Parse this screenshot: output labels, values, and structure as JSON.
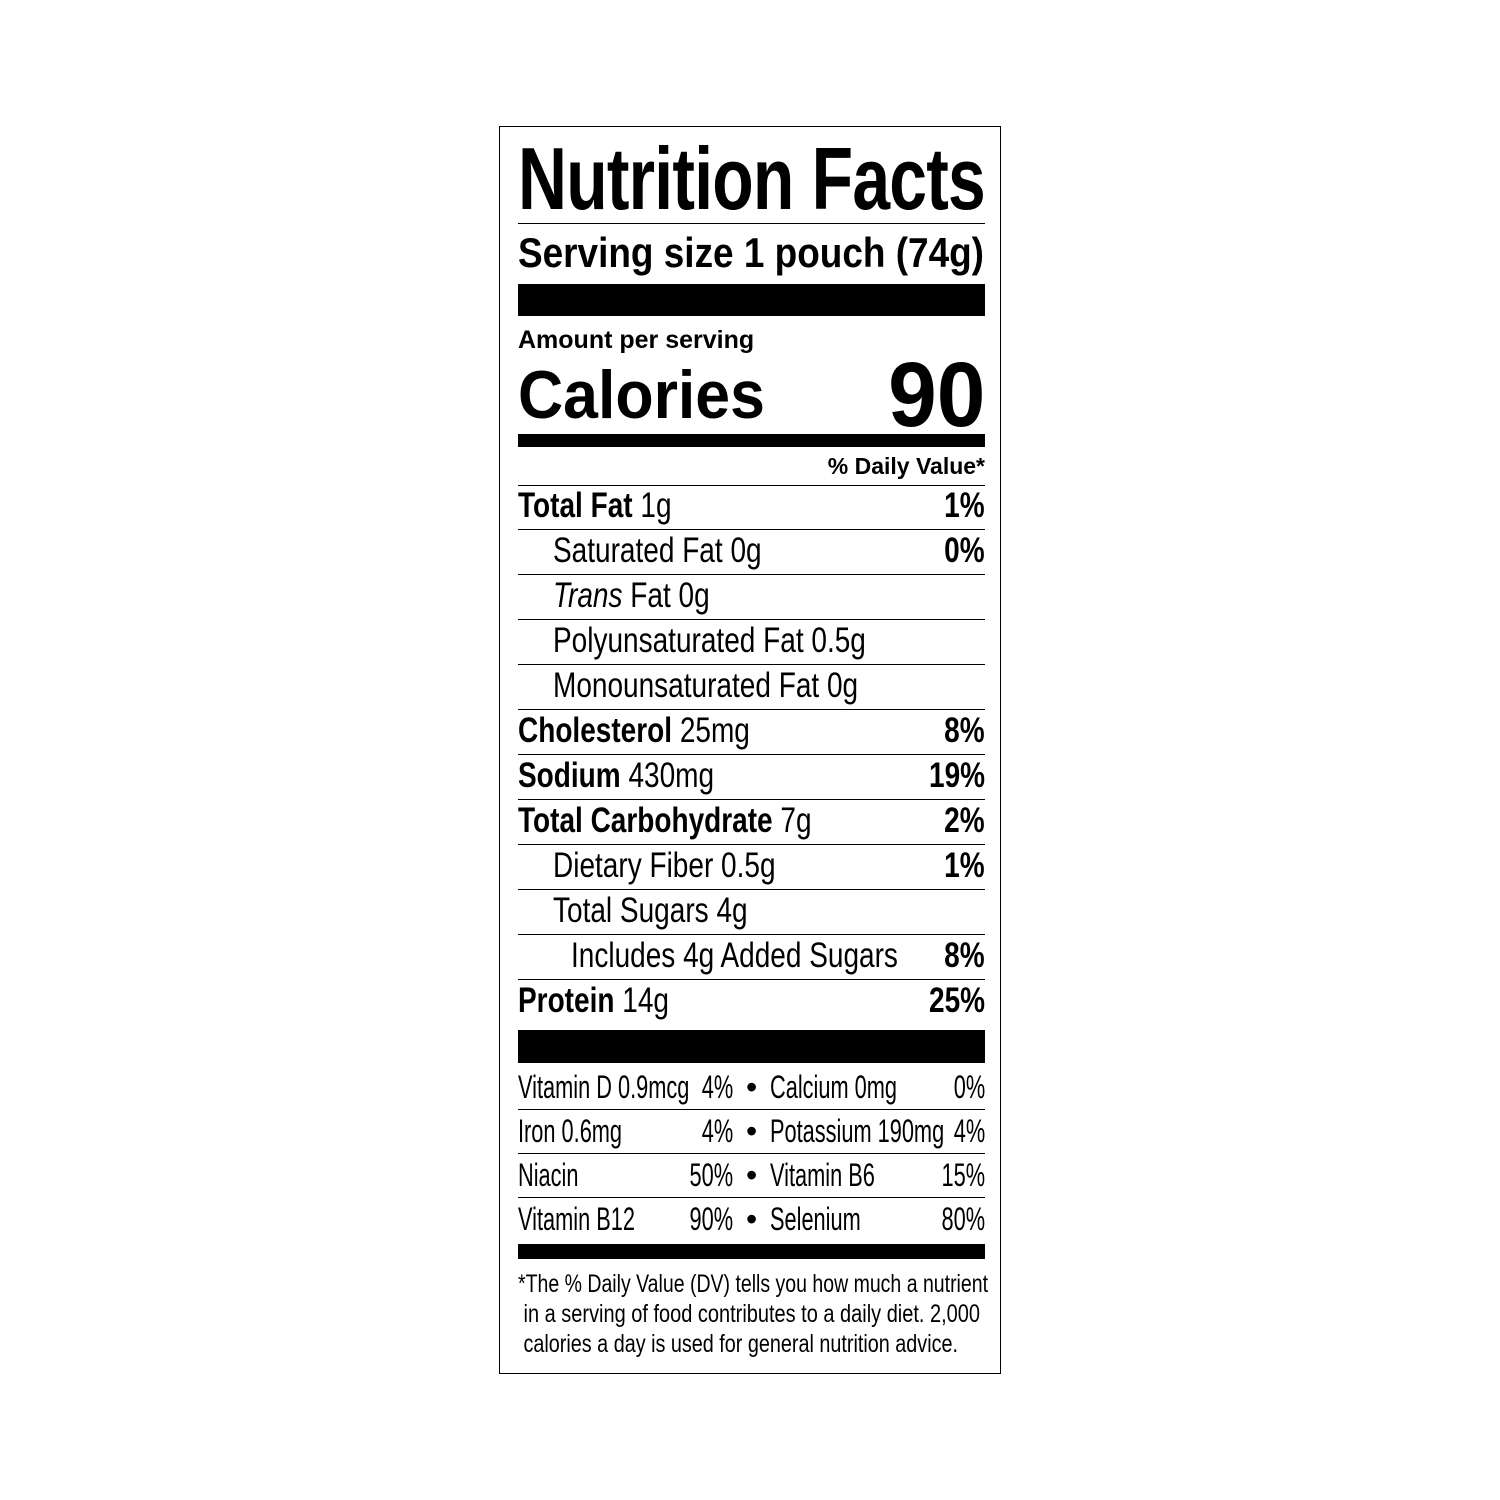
{
  "title": "Nutrition Facts",
  "serving_size": "Serving size 1 pouch (74g)",
  "amount_per_serving": "Amount per serving",
  "calories_label": "Calories",
  "calories_value": "90",
  "daily_value_header": "% Daily Value*",
  "nutrients": [
    {
      "name": "Total Fat",
      "amount": "1g",
      "dv": "1%",
      "bold": true,
      "indent": 0
    },
    {
      "name": "Saturated Fat",
      "amount": "0g",
      "dv": "0%",
      "bold": false,
      "indent": 1
    },
    {
      "name": "Trans",
      "name_suffix": "Fat",
      "amount": "0g",
      "dv": "",
      "bold": false,
      "indent": 1,
      "italic_prefix": true
    },
    {
      "name": "Polyunsaturated Fat",
      "amount": "0.5g",
      "dv": "",
      "bold": false,
      "indent": 1
    },
    {
      "name": "Monounsaturated Fat",
      "amount": "0g",
      "dv": "",
      "bold": false,
      "indent": 1
    },
    {
      "name": "Cholesterol",
      "amount": "25mg",
      "dv": "8%",
      "bold": true,
      "indent": 0
    },
    {
      "name": "Sodium",
      "amount": "430mg",
      "dv": "19%",
      "bold": true,
      "indent": 0
    },
    {
      "name": "Total Carbohydrate",
      "amount": "7g",
      "dv": "2%",
      "bold": true,
      "indent": 0
    },
    {
      "name": "Dietary Fiber",
      "amount": "0.5g",
      "dv": "1%",
      "bold": false,
      "indent": 1
    },
    {
      "name": "Total Sugars",
      "amount": "4g",
      "dv": "",
      "bold": false,
      "indent": 1
    },
    {
      "name": "Includes 4g Added Sugars",
      "amount": "",
      "dv": "8%",
      "bold": false,
      "indent": 2
    },
    {
      "name": "Protein",
      "amount": "14g",
      "dv": "25%",
      "bold": true,
      "indent": 0
    }
  ],
  "vitamins": [
    {
      "left_name": "Vitamin D 0.9mcg",
      "left_dv": "4%",
      "right_name": "Calcium 0mg",
      "right_dv": "0%"
    },
    {
      "left_name": "Iron 0.6mg",
      "left_dv": "4%",
      "right_name": "Potassium 190mg",
      "right_dv": "4%"
    },
    {
      "left_name": "Niacin",
      "left_dv": "50%",
      "right_name": "Vitamin B6",
      "right_dv": "15%"
    },
    {
      "left_name": "Vitamin B12",
      "left_dv": "90%",
      "right_name": "Selenium",
      "right_dv": "80%"
    }
  ],
  "bullet": "•",
  "footnote": [
    "*The % Daily Value (DV) tells you how much a nutrient",
    " in a serving of food contributes to a daily diet. 2,000",
    " calories a day is used for general nutrition advice."
  ]
}
